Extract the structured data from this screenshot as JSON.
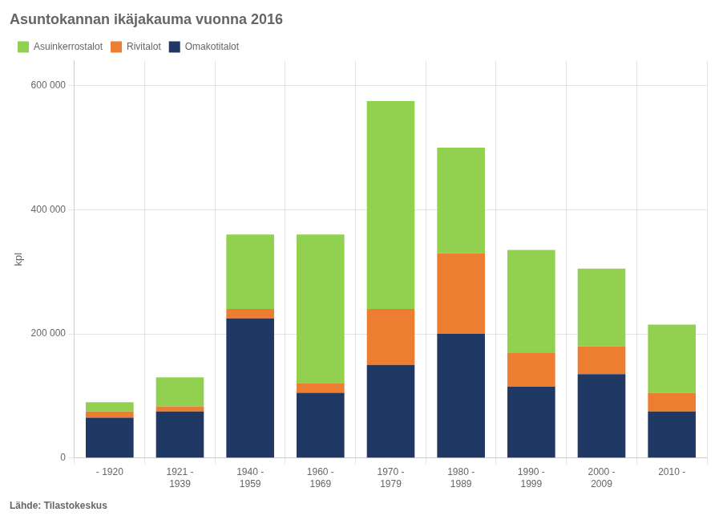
{
  "chart_data": {
    "type": "bar",
    "title": "Asuntokannan ikäjakauma vuonna 2016",
    "ylabel": "kpl",
    "annotations": [
      "Lähde: Tilastokeskus"
    ],
    "categories": [
      "- 1920",
      "1921 -\n1939",
      "1940 -\n1959",
      "1960 -\n1969",
      "1970 -\n1979",
      "1980 -\n1989",
      "1990 -\n1999",
      "2000 -\n2009",
      "2010 -"
    ],
    "series": [
      {
        "name": "Omakotitalot",
        "color": "#1f3864",
        "values": [
          65000,
          75000,
          225000,
          105000,
          150000,
          200000,
          115000,
          135000,
          75000
        ]
      },
      {
        "name": "Rivitalot",
        "color": "#ed7d31",
        "values": [
          10000,
          8000,
          15000,
          15000,
          90000,
          130000,
          55000,
          45000,
          30000
        ]
      },
      {
        "name": "Asuinkerrostalot",
        "color": "#92d050",
        "values": [
          15000,
          47000,
          120000,
          240000,
          335000,
          170000,
          165000,
          125000,
          110000
        ]
      }
    ],
    "stacked": true,
    "ylim": [
      0,
      640000
    ],
    "yticks": [
      0,
      {
        "value": 200000,
        "label": "200 000"
      },
      {
        "value": 400000,
        "label": "400 000"
      },
      {
        "value": 600000,
        "label": "600 000"
      }
    ],
    "grid": true,
    "legend": "upper left"
  }
}
